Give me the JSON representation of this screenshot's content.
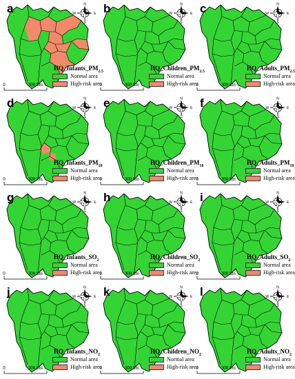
{
  "colors": {
    "normal": "#35D435",
    "high_risk": "#F08A6A",
    "boundary": "#000000"
  },
  "scale_bar": {
    "zero": "0",
    "distance": "300 km"
  },
  "compass": {
    "n": "N",
    "e": "E",
    "s": "S",
    "w": "W"
  },
  "legend": {
    "normal": "Normal area",
    "high_risk": "High-risk area"
  },
  "panels": [
    {
      "letter": "a",
      "title_main": "HQ_Infants_PM",
      "title_sub": "2.5",
      "risk": "large"
    },
    {
      "letter": "b",
      "title_main": "HQ_Children_PM",
      "title_sub": "2.5",
      "risk": "none"
    },
    {
      "letter": "c",
      "title_main": "HQ_Adults_PM",
      "title_sub": "2.5",
      "risk": "none"
    },
    {
      "letter": "d",
      "title_main": "HQ_Infants_PM",
      "title_sub": "10",
      "risk": "small"
    },
    {
      "letter": "e",
      "title_main": "HQ_Children_PM",
      "title_sub": "10",
      "risk": "none"
    },
    {
      "letter": "f",
      "title_main": "HQ_Adults_PM",
      "title_sub": "10",
      "risk": "none"
    },
    {
      "letter": "g",
      "title_main": "HQ_Infants_SO",
      "title_sub": "2",
      "risk": "none"
    },
    {
      "letter": "h",
      "title_main": "HQ_Children_SO",
      "title_sub": "2",
      "risk": "none"
    },
    {
      "letter": "i",
      "title_main": "HQ_Adults_SO",
      "title_sub": "2",
      "risk": "none"
    },
    {
      "letter": "j",
      "title_main": "HQ_Infants_NO",
      "title_sub": "2",
      "risk": "none"
    },
    {
      "letter": "k",
      "title_main": "HQ_Children_NO",
      "title_sub": "2",
      "risk": "none"
    },
    {
      "letter": "l",
      "title_main": "HQ_Adults_NO",
      "title_sub": "2",
      "risk": "none"
    }
  ]
}
